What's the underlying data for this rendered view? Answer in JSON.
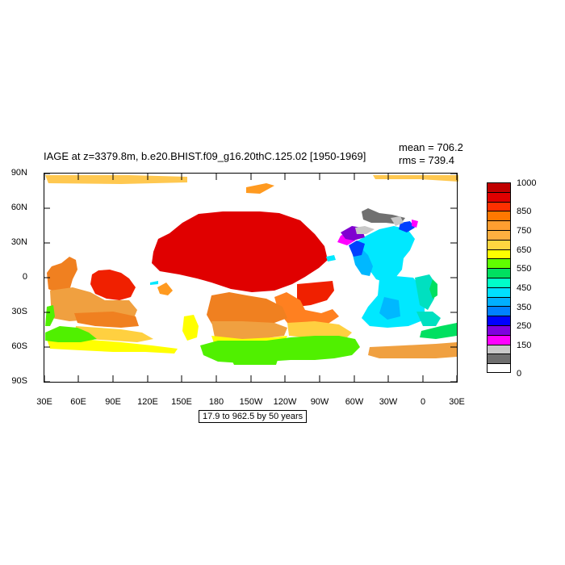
{
  "title": "IAGE at z=3379.8m, b.e20.BHIST.f09_g16.20thC.125.02 [1950-1969]",
  "mean_text": "mean = 706.2",
  "rms_text": "rms = 739.4",
  "subtitle": "17.9 to 962.5 by 50 years",
  "lat_labels": [
    "90N",
    "60N",
    "30N",
    "0",
    "30S",
    "60S",
    "90S"
  ],
  "lon_labels": [
    "30E",
    "60E",
    "90E",
    "120E",
    "150E",
    "180",
    "150W",
    "120W",
    "90W",
    "60W",
    "30W",
    "0",
    "30E"
  ],
  "legend": {
    "colors": [
      "#c00000",
      "#e00000",
      "#ff3000",
      "#ff7800",
      "#ff9e30",
      "#ffb040",
      "#ffd640",
      "#ffff00",
      "#60ff00",
      "#00e060",
      "#00ffc8",
      "#00e0ff",
      "#00b0ff",
      "#0080ff",
      "#0000ff",
      "#8000e0",
      "#ff00ff",
      "#c8c8c8",
      "#6e6e6e",
      "#ffffff"
    ],
    "labels": [
      "1000",
      "850",
      "750",
      "650",
      "550",
      "450",
      "350",
      "250",
      "150",
      "0"
    ]
  },
  "colors": {
    "red": "#e00000",
    "red_orange": "#ff3000",
    "orange": "#f08020",
    "light_orange": "#f0a040",
    "gold": "#ffd040",
    "yellow": "#ffff00",
    "green": "#50f000",
    "teal": "#00e0c0",
    "cyan": "#00e8ff",
    "sky": "#00b8ff",
    "blue": "#0040ff",
    "purple": "#8000d0",
    "magenta": "#ff00ff",
    "grey": "#707070",
    "light_grey": "#c8c8c8"
  }
}
